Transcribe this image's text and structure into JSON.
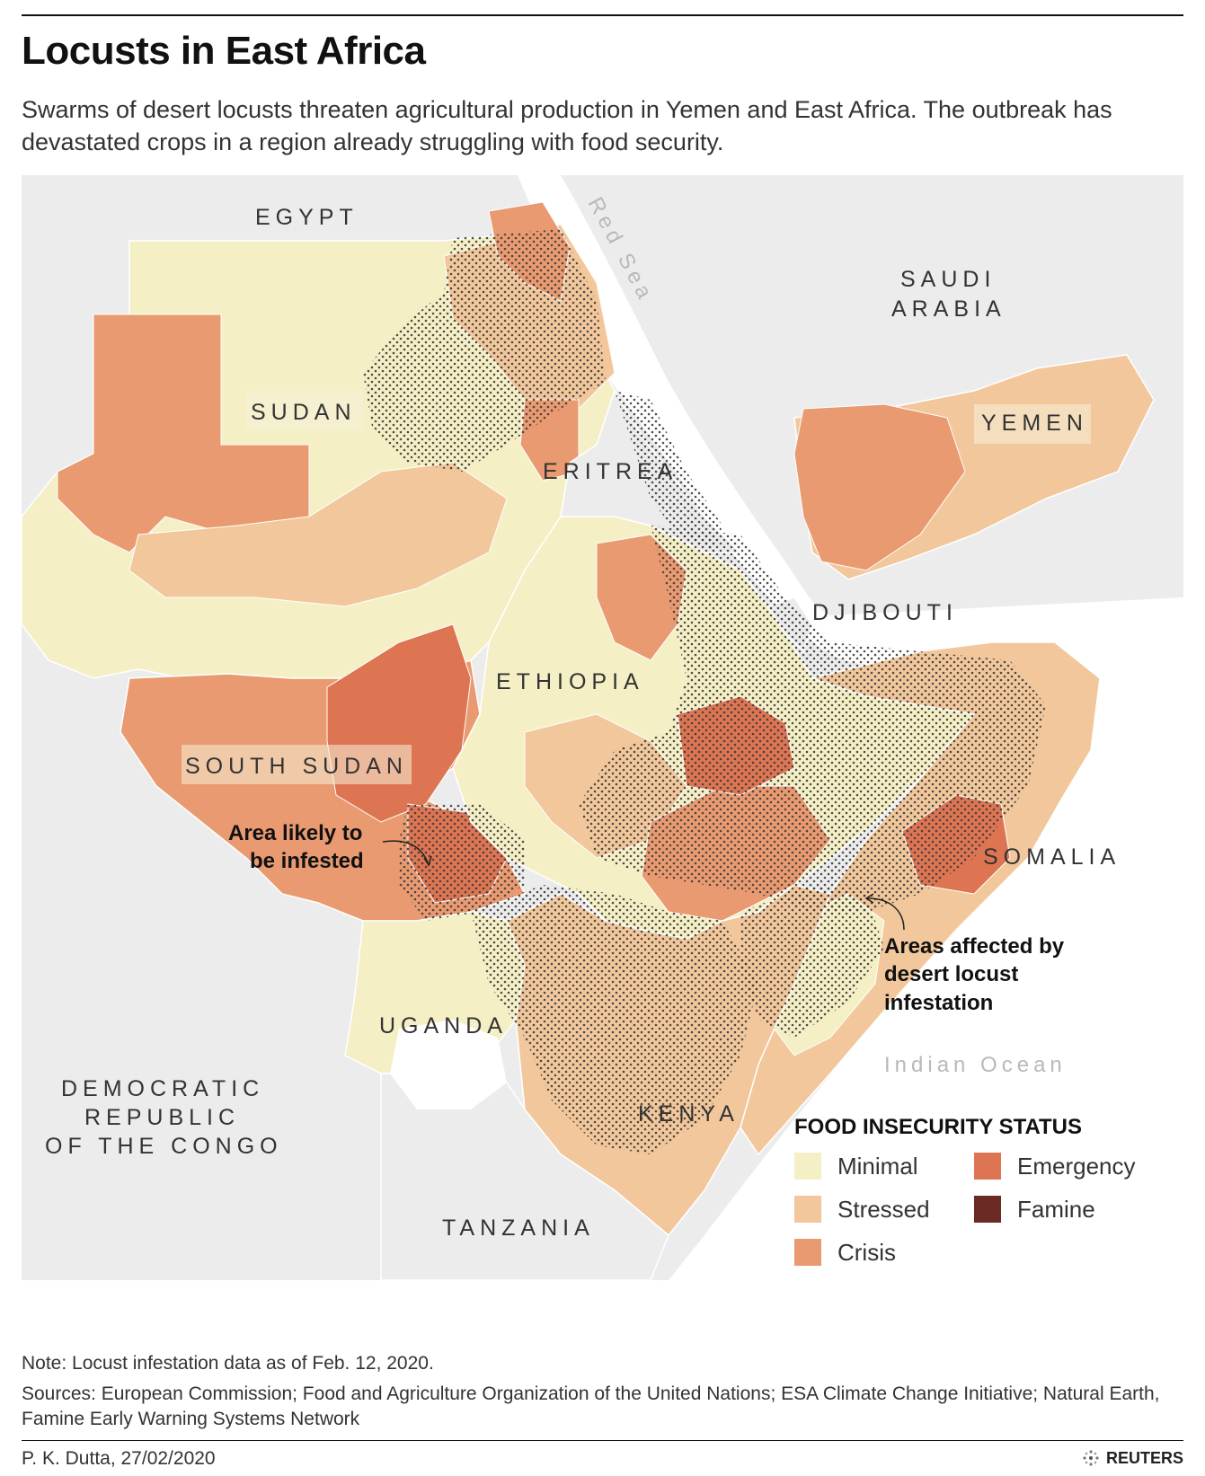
{
  "title": "Locusts in East Africa",
  "subtitle": "Swarms of desert locusts threaten agricultural production in Yemen and East Africa. The outbreak has devastated crops in a region already struggling with food security.",
  "map": {
    "countries": [
      "EGYPT",
      "SUDAN",
      "ERITREA",
      "SAUDI",
      "ARABIA",
      "YEMEN",
      "DJIBOUTI",
      "ETHIOPIA",
      "SOUTH SUDAN",
      "SOMALIA",
      "UGANDA",
      "KENYA",
      "TANZANIA",
      "DEMOCRATIC",
      "REPUBLIC",
      "OF THE CONGO"
    ],
    "water": {
      "red_sea": "Red Sea",
      "indian_ocean": "Indian Ocean"
    },
    "annotations": {
      "likely": [
        "Area likely to",
        "be infested"
      ],
      "affected": [
        "Areas affected by",
        "desert locust",
        "infestation"
      ]
    }
  },
  "legend": {
    "title": "FOOD INSECURITY STATUS",
    "items": [
      {
        "label": "Minimal",
        "color": "#f4efc5"
      },
      {
        "label": "Stressed",
        "color": "#f1c79b"
      },
      {
        "label": "Crisis",
        "color": "#e99a70"
      },
      {
        "label": "Emergency",
        "color": "#dd7552"
      },
      {
        "label": "Famine",
        "color": "#6b2a24"
      }
    ]
  },
  "colors": {
    "background_land": "#ececec",
    "sea": "#ffffff",
    "stipple": "#3a3a3a"
  },
  "note": "Note: Locust infestation data as of Feb. 12, 2020.",
  "sources": "Sources: European Commission; Food and Agriculture Organization of the United Nations; ESA Climate Change Initiative; Natural Earth, Famine Early Warning Systems Network",
  "credit": "P. K. Dutta,  27/02/2020",
  "brand": "REUTERS"
}
